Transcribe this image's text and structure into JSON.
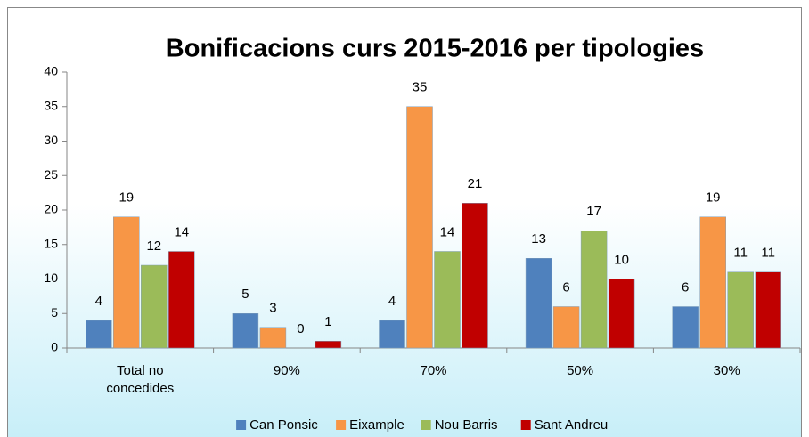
{
  "chart_data": {
    "type": "bar",
    "title": "Bonificacions curs 2015-2016 per tipologies",
    "categories": [
      "Total no concedides",
      "90%",
      "70%",
      "50%",
      "30%"
    ],
    "series": [
      {
        "name": "Can Ponsic",
        "color": "#4f81bd",
        "values": [
          4,
          5,
          4,
          13,
          6
        ]
      },
      {
        "name": "Eixample",
        "color": "#f79646",
        "values": [
          19,
          3,
          35,
          6,
          19
        ]
      },
      {
        "name": "Nou Barris",
        "color": "#9bbb59",
        "values": [
          12,
          0,
          14,
          17,
          11
        ]
      },
      {
        "name": "Sant Andreu",
        "color": "#c00000",
        "values": [
          14,
          1,
          21,
          10,
          11
        ]
      }
    ],
    "ylim": [
      0,
      40
    ],
    "yticks": [
      0,
      5,
      10,
      15,
      20,
      25,
      30,
      35,
      40
    ],
    "grid": false,
    "legend": "bottom"
  }
}
